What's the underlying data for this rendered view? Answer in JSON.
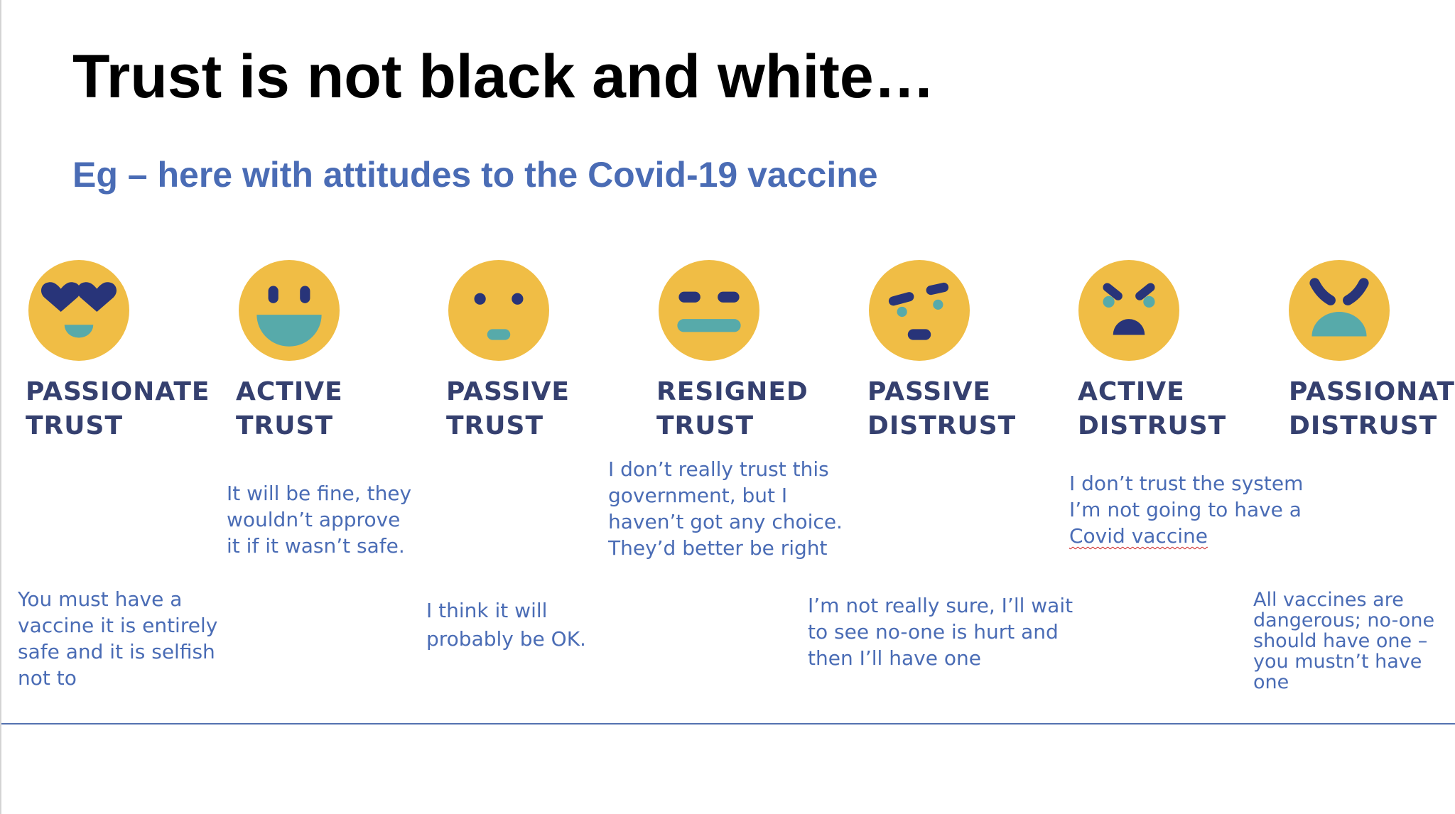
{
  "slide": {
    "title": "Trust is not black and white…",
    "subtitle": "Eg – here with attitudes to the Covid-19 vaccine"
  },
  "colors": {
    "face": "#f0bd45",
    "dark": "#283479",
    "teal": "#57aaaa",
    "label": "#35406f",
    "blue_text": "#4a6cb5",
    "subtitle": "#4a6cb5"
  },
  "levels": [
    {
      "line1": "PASSIONATE",
      "line2": "TRUST",
      "icon": "heart-eyes-face-icon",
      "quote": [
        "You must have a",
        "vaccine it is entirely",
        "safe and it is selfish",
        "not to"
      ]
    },
    {
      "line1": "ACTIVE",
      "line2": "TRUST",
      "icon": "big-grin-face-icon",
      "quote": [
        "It will be fine, they",
        "wouldn’t approve",
        "it if it wasn’t safe."
      ]
    },
    {
      "line1": "PASSIVE",
      "line2": "TRUST",
      "icon": "calm-face-icon",
      "quote": [
        "I think it will",
        "probably be OK."
      ]
    },
    {
      "line1": "RESIGNED",
      "line2": "TRUST",
      "icon": "flat-mouth-face-icon",
      "quote": [
        "I don’t really trust this",
        "government, but I",
        "haven’t got any choice.",
        "They’d better be right"
      ]
    },
    {
      "line1": "PASSIVE",
      "line2": "DISTRUST",
      "icon": "skeptical-face-icon",
      "quote": [
        "I’m not really sure, I’ll wait",
        "to see no-one is hurt and",
        "then I’ll have one"
      ]
    },
    {
      "line1": "ACTIVE",
      "line2": "DISTRUST",
      "icon": "upset-face-icon",
      "quote": [
        "I don’t trust the system",
        "I’m not going to have a",
        "Covid vaccine"
      ]
    },
    {
      "line1": "PASSIONATE",
      "line2": "DISTRUST",
      "icon": "angry-face-icon",
      "quote": [
        "All vaccines are",
        "dangerous; no-one",
        "should have one –",
        "you mustn’t have",
        "one"
      ]
    }
  ]
}
